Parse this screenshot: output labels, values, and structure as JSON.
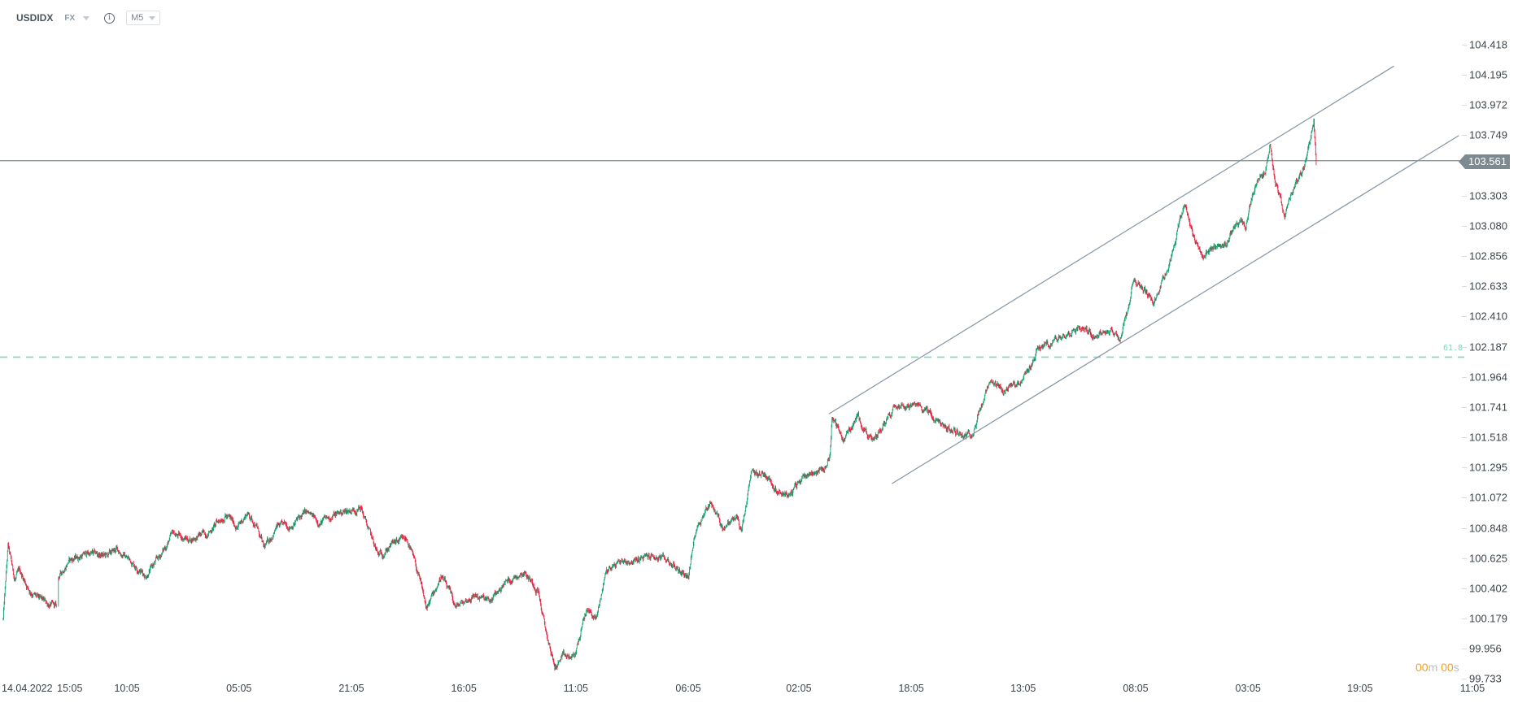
{
  "header": {
    "symbol": "USDIDX",
    "market": "FX",
    "info_icon": "info-icon",
    "timeframe": "M5"
  },
  "current_price": "103.561",
  "timer": {
    "minutes": "00",
    "m": "m",
    "seconds": "00",
    "s": "s"
  },
  "colors": {
    "up": "#17a06f",
    "down": "#e6233f",
    "channel": "#8494a3",
    "price_line": "#7e8a92",
    "fib": "#7fd8bf",
    "timer": "#f5a01e"
  },
  "chart_data": {
    "type": "candlestick",
    "title": "USDIDX M5",
    "ylim": [
      99.733,
      104.418
    ],
    "y_ticks": [
      "104.418",
      "104.195",
      "103.972",
      "103.749",
      "103.303",
      "103.080",
      "102.856",
      "102.633",
      "102.410",
      "102.187",
      "101.964",
      "101.741",
      "101.518",
      "101.295",
      "101.072",
      "100.848",
      "100.625",
      "100.402",
      "100.179",
      "99.956",
      "99.733"
    ],
    "x_ticks": [
      {
        "bar": 3,
        "label": "14.04.2022"
      },
      {
        "bar": 144,
        "label": "15:05"
      },
      {
        "bar": 262,
        "label": "10:05"
      },
      {
        "bar": 493,
        "label": "05:05"
      },
      {
        "bar": 725,
        "label": "21:05"
      },
      {
        "bar": 957,
        "label": "16:05"
      },
      {
        "bar": 1188,
        "label": "11:05"
      },
      {
        "bar": 1420,
        "label": "06:05"
      },
      {
        "bar": 1648,
        "label": "02:05"
      },
      {
        "bar": 1880,
        "label": "18:05"
      },
      {
        "bar": 2111,
        "label": "13:05"
      },
      {
        "bar": 2343,
        "label": "08:05"
      },
      {
        "bar": 2575,
        "label": "03:05"
      },
      {
        "bar": 2806,
        "label": "19:05"
      },
      {
        "bar": 3038,
        "label": "11:05"
      }
    ],
    "gap_bars": [
      117,
      119
    ],
    "price_path": [
      [
        6,
        100.175
      ],
      [
        16,
        100.711
      ],
      [
        30,
        100.461
      ],
      [
        40,
        100.532
      ],
      [
        60,
        100.389
      ],
      [
        80,
        100.318
      ],
      [
        116,
        100.261
      ],
      [
        120,
        100.475
      ],
      [
        140,
        100.604
      ],
      [
        180,
        100.661
      ],
      [
        220,
        100.639
      ],
      [
        240,
        100.689
      ],
      [
        270,
        100.604
      ],
      [
        300,
        100.497
      ],
      [
        330,
        100.639
      ],
      [
        356,
        100.804
      ],
      [
        390,
        100.761
      ],
      [
        430,
        100.818
      ],
      [
        464,
        100.947
      ],
      [
        490,
        100.854
      ],
      [
        510,
        100.961
      ],
      [
        530,
        100.854
      ],
      [
        544,
        100.689
      ],
      [
        570,
        100.854
      ],
      [
        600,
        100.868
      ],
      [
        630,
        100.961
      ],
      [
        660,
        100.889
      ],
      [
        700,
        100.961
      ],
      [
        744,
        100.997
      ],
      [
        760,
        100.832
      ],
      [
        780,
        100.639
      ],
      [
        810,
        100.732
      ],
      [
        840,
        100.761
      ],
      [
        860,
        100.532
      ],
      [
        880,
        100.247
      ],
      [
        910,
        100.497
      ],
      [
        940,
        100.261
      ],
      [
        980,
        100.354
      ],
      [
        1010,
        100.297
      ],
      [
        1040,
        100.439
      ],
      [
        1080,
        100.532
      ],
      [
        1110,
        100.389
      ],
      [
        1124,
        100.104
      ],
      [
        1144,
        99.818
      ],
      [
        1160,
        99.889
      ],
      [
        1184,
        99.889
      ],
      [
        1210,
        100.247
      ],
      [
        1230,
        100.175
      ],
      [
        1250,
        100.532
      ],
      [
        1280,
        100.604
      ],
      [
        1310,
        100.604
      ],
      [
        1340,
        100.639
      ],
      [
        1380,
        100.604
      ],
      [
        1400,
        100.532
      ],
      [
        1420,
        100.497
      ],
      [
        1436,
        100.854
      ],
      [
        1466,
        101.047
      ],
      [
        1490,
        100.854
      ],
      [
        1520,
        100.925
      ],
      [
        1530,
        100.818
      ],
      [
        1550,
        101.247
      ],
      [
        1580,
        101.247
      ],
      [
        1600,
        101.139
      ],
      [
        1630,
        101.089
      ],
      [
        1660,
        101.247
      ],
      [
        1700,
        101.282
      ],
      [
        1712,
        101.389
      ],
      [
        1716,
        101.675
      ],
      [
        1740,
        101.497
      ],
      [
        1770,
        101.675
      ],
      [
        1800,
        101.475
      ],
      [
        1820,
        101.604
      ],
      [
        1850,
        101.782
      ],
      [
        1880,
        101.747
      ],
      [
        1910,
        101.732
      ],
      [
        1930,
        101.639
      ],
      [
        1960,
        101.568
      ],
      [
        2000,
        101.532
      ],
      [
        2010,
        101.604
      ],
      [
        2040,
        101.904
      ],
      [
        2070,
        101.854
      ],
      [
        2100,
        101.925
      ],
      [
        2120,
        101.997
      ],
      [
        2140,
        102.175
      ],
      [
        2170,
        102.211
      ],
      [
        2200,
        102.304
      ],
      [
        2230,
        102.332
      ],
      [
        2260,
        102.282
      ],
      [
        2290,
        102.318
      ],
      [
        2310,
        102.247
      ],
      [
        2330,
        102.497
      ],
      [
        2340,
        102.711
      ],
      [
        2360,
        102.604
      ],
      [
        2380,
        102.518
      ],
      [
        2410,
        102.782
      ],
      [
        2430,
        103.068
      ],
      [
        2444,
        103.247
      ],
      [
        2460,
        103.032
      ],
      [
        2480,
        102.854
      ],
      [
        2510,
        102.925
      ],
      [
        2530,
        102.961
      ],
      [
        2550,
        103.104
      ],
      [
        2570,
        103.068
      ],
      [
        2590,
        103.389
      ],
      [
        2610,
        103.497
      ],
      [
        2620,
        103.675
      ],
      [
        2630,
        103.425
      ],
      [
        2640,
        103.318
      ],
      [
        2650,
        103.118
      ],
      [
        2664,
        103.318
      ],
      [
        2690,
        103.497
      ],
      [
        2710,
        103.854
      ],
      [
        2716,
        103.475
      ]
    ],
    "trendlines": [
      {
        "name": "channel-upper",
        "from": [
          1710,
          101.69
        ],
        "to": [
          2876,
          104.26
        ]
      },
      {
        "name": "channel-lower",
        "from": [
          1840,
          101.175
        ],
        "to": [
          3010,
          103.747
        ]
      }
    ],
    "horizontal_lines": [
      {
        "name": "current-price-line",
        "price": 103.561,
        "style": "solid"
      },
      {
        "name": "fib-61.8-line",
        "price": 102.11,
        "style": "dashed",
        "label": "61.8"
      }
    ]
  }
}
